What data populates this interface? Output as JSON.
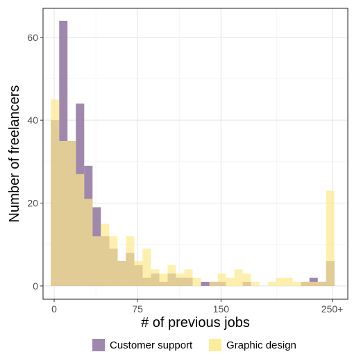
{
  "chart_data": {
    "type": "histogram",
    "xlabel": "# of previous jobs",
    "ylabel": "Number of freelancers",
    "x_ticks": [
      {
        "value": 0,
        "label": "0"
      },
      {
        "value": 75,
        "label": "75"
      },
      {
        "value": 150,
        "label": "150"
      },
      {
        "value": 250,
        "label": "250+"
      }
    ],
    "y_ticks": [
      0,
      20,
      40,
      60
    ],
    "xlim": [
      -10,
      264
    ],
    "ylim": [
      -3.2,
      67
    ],
    "bin_start": -3,
    "bin_width": 7.5,
    "grid": true,
    "legend_position": "bottom",
    "series": [
      {
        "name": "Customer support",
        "color": "#8f739f",
        "values": [
          40,
          64,
          35,
          44,
          29,
          19,
          12,
          9,
          6,
          8,
          5,
          2,
          3,
          1,
          3,
          2,
          2,
          0,
          1,
          1,
          1,
          0,
          0,
          1,
          0,
          0,
          0,
          0,
          0,
          0,
          1,
          2,
          1,
          6
        ]
      },
      {
        "name": "Graphic design",
        "color": "#fcea8c",
        "values": [
          45,
          35,
          35,
          27,
          21,
          12,
          15,
          12,
          6,
          12,
          6,
          9,
          4,
          3,
          5,
          3,
          4,
          2,
          0,
          1,
          3,
          2,
          4,
          3,
          1,
          0,
          1,
          2,
          2,
          1,
          1,
          1,
          1,
          23
        ]
      }
    ],
    "legend": [
      {
        "label": "Customer support",
        "color": "#8f739f"
      },
      {
        "label": "Graphic design",
        "color": "#fcea8c"
      }
    ]
  }
}
